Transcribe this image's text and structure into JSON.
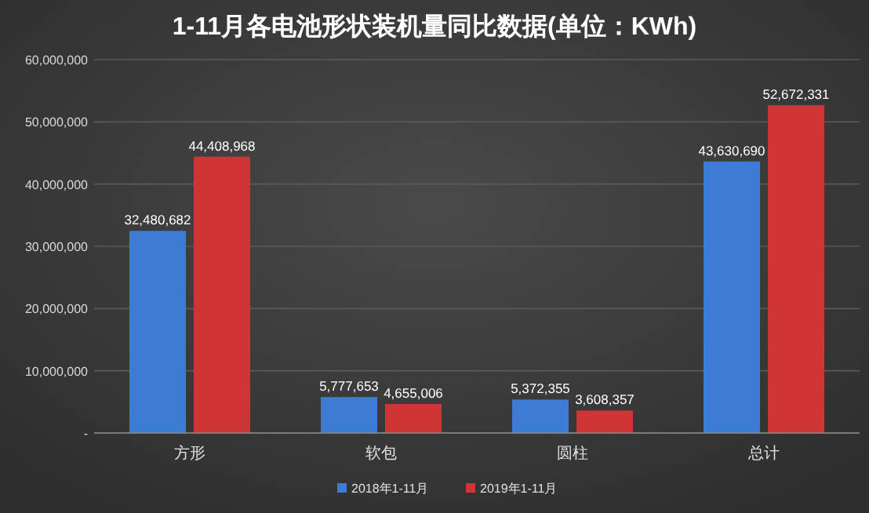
{
  "chart_data": {
    "type": "bar",
    "title": "1-11月各电池形状装机量同比数据(单位：KWh)",
    "categories": [
      "方形",
      "软包",
      "圆柱",
      "总计"
    ],
    "series": [
      {
        "name": "2018年1-11月",
        "color": "#3d7bd4",
        "values": [
          32480682,
          5777653,
          5372355,
          43630690
        ],
        "value_labels": [
          "32,480,682",
          "5,777,653",
          "5,372,355",
          "43,630,690"
        ]
      },
      {
        "name": "2019年1-11月",
        "color": "#d03434",
        "values": [
          44408968,
          4655006,
          3608357,
          52672331
        ],
        "value_labels": [
          "44,408,968",
          "4,655,006",
          "3,608,357",
          "52,672,331"
        ]
      }
    ],
    "ylim": [
      0,
      60000000
    ],
    "yticks": [
      {
        "value": 0,
        "label": "-"
      },
      {
        "value": 10000000,
        "label": "10,000,000"
      },
      {
        "value": 20000000,
        "label": "20,000,000"
      },
      {
        "value": 30000000,
        "label": "30,000,000"
      },
      {
        "value": 40000000,
        "label": "40,000,000"
      },
      {
        "value": 50000000,
        "label": "50,000,000"
      },
      {
        "value": 60000000,
        "label": "60,000,000"
      }
    ],
    "grid": "y",
    "legend": "bottom"
  }
}
